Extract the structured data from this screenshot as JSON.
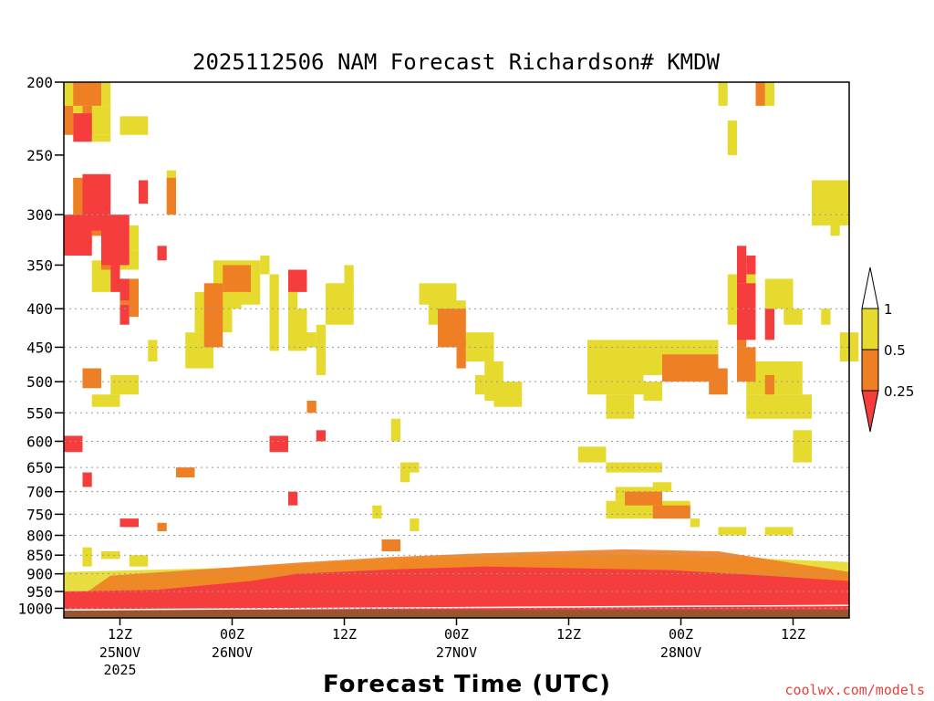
{
  "chart_data": {
    "type": "heatmap",
    "title": "2025112506 NAM Forecast Richardson# KMDW",
    "xlabel": "Forecast Time (UTC)",
    "ylabel": "Pressure (hPa)",
    "credit": "coolwx.com/models",
    "y_axis": {
      "scale": "log",
      "reversed": true,
      "ylim": [
        1030,
        200
      ],
      "ticks": [
        200,
        250,
        300,
        350,
        400,
        450,
        500,
        550,
        600,
        650,
        700,
        750,
        800,
        850,
        900,
        950,
        1000
      ]
    },
    "x_axis": {
      "unit": "forecast hour",
      "xlim": [
        0,
        84
      ],
      "ticks": [
        {
          "hour": 6,
          "label": "12Z",
          "sub": "25NOV",
          "sub2": "2025"
        },
        {
          "hour": 18,
          "label": "00Z",
          "sub": "26NOV",
          "sub2": ""
        },
        {
          "hour": 30,
          "label": "12Z",
          "sub": "",
          "sub2": ""
        },
        {
          "hour": 42,
          "label": "00Z",
          "sub": "27NOV",
          "sub2": ""
        },
        {
          "hour": 54,
          "label": "12Z",
          "sub": "",
          "sub2": ""
        },
        {
          "hour": 66,
          "label": "00Z",
          "sub": "28NOV",
          "sub2": ""
        },
        {
          "hour": 78,
          "label": "12Z",
          "sub": "",
          "sub2": ""
        }
      ]
    },
    "legend": {
      "position": "right",
      "levels": [
        {
          "range": "> 1",
          "color": "#ffffff"
        },
        {
          "range": "0.5 - 1",
          "color": "#e6da2e"
        },
        {
          "range": "0.25 - 0.5",
          "color": "#ee7f24"
        },
        {
          "range": "< 0.25",
          "color": "#f63d3d"
        }
      ],
      "labels": [
        "1",
        "0.5",
        "0.25"
      ]
    },
    "underground": {
      "color": "#9a5430",
      "pressure_top": 1005
    },
    "series": [
      {
        "name": "0.5-1",
        "color": "#e6da2e",
        "cells": [
          [
            0,
            2,
            200,
            215
          ],
          [
            4,
            5,
            200,
            215
          ],
          [
            1,
            5,
            215,
            235
          ],
          [
            6,
            9,
            222,
            235
          ],
          [
            3,
            5,
            235,
            240
          ],
          [
            1,
            4,
            268,
            310
          ],
          [
            11,
            12,
            262,
            300
          ],
          [
            7,
            8,
            310,
            335
          ],
          [
            5,
            8,
            335,
            355
          ],
          [
            3,
            5,
            345,
            380
          ],
          [
            16,
            21,
            345,
            395
          ],
          [
            14,
            18,
            380,
            430
          ],
          [
            13,
            16,
            430,
            480
          ],
          [
            18,
            19,
            350,
            400
          ],
          [
            21,
            22,
            340,
            360
          ],
          [
            22,
            23,
            360,
            455
          ],
          [
            24,
            25,
            360,
            400
          ],
          [
            24,
            26,
            400,
            455
          ],
          [
            28,
            31,
            370,
            420
          ],
          [
            27,
            28,
            420,
            490
          ],
          [
            30,
            31,
            350,
            380
          ],
          [
            9,
            10,
            440,
            470
          ],
          [
            5,
            8,
            490,
            520
          ],
          [
            38,
            42,
            370,
            395
          ],
          [
            39,
            43,
            390,
            420
          ],
          [
            42,
            43,
            420,
            450
          ],
          [
            43,
            46,
            430,
            470
          ],
          [
            44,
            45,
            490,
            520
          ],
          [
            45,
            47,
            470,
            530
          ],
          [
            46,
            49,
            500,
            540
          ],
          [
            56,
            62,
            440,
            520
          ],
          [
            58,
            61,
            520,
            560
          ],
          [
            62,
            70,
            440,
            490
          ],
          [
            62,
            64,
            500,
            530
          ],
          [
            73,
            79,
            470,
            520
          ],
          [
            73,
            80,
            520,
            560
          ],
          [
            78,
            80,
            580,
            640
          ],
          [
            71,
            74,
            360,
            420
          ],
          [
            75,
            78,
            365,
            400
          ],
          [
            77,
            79,
            400,
            420
          ],
          [
            81,
            82,
            400,
            420
          ],
          [
            83,
            85,
            430,
            470
          ],
          [
            80,
            84,
            270,
            310
          ],
          [
            82,
            83,
            300,
            320
          ],
          [
            71,
            72,
            225,
            250
          ],
          [
            70,
            71,
            200,
            215
          ],
          [
            75,
            76,
            200,
            215
          ],
          [
            55,
            58,
            610,
            640
          ],
          [
            58,
            64,
            640,
            660
          ],
          [
            59,
            64,
            690,
            720
          ],
          [
            58,
            67,
            720,
            760
          ],
          [
            63,
            65,
            680,
            700
          ],
          [
            67,
            68,
            760,
            780
          ],
          [
            70,
            73,
            780,
            800
          ],
          [
            75,
            78,
            780,
            800
          ],
          [
            3,
            6,
            520,
            540
          ],
          [
            26,
            27,
            430,
            450
          ],
          [
            36,
            38,
            640,
            660
          ],
          [
            35,
            36,
            560,
            600
          ],
          [
            36,
            37,
            650,
            680
          ],
          [
            37,
            38,
            760,
            790
          ],
          [
            33,
            34,
            730,
            760
          ],
          [
            2,
            3,
            830,
            880
          ],
          [
            4,
            6,
            840,
            860
          ],
          [
            7,
            9,
            850,
            880
          ]
        ]
      },
      {
        "name": "0.25-0.5",
        "color": "#ee7f24",
        "cells": [
          [
            1,
            4,
            200,
            215
          ],
          [
            0,
            1,
            215,
            235
          ],
          [
            2,
            3,
            215,
            235
          ],
          [
            1,
            2,
            268,
            300
          ],
          [
            2,
            3,
            300,
            330
          ],
          [
            3,
            4,
            280,
            320
          ],
          [
            4,
            5,
            325,
            355
          ],
          [
            6,
            8,
            365,
            395
          ],
          [
            11,
            12,
            268,
            300
          ],
          [
            17,
            20,
            350,
            380
          ],
          [
            15,
            17,
            370,
            450
          ],
          [
            7,
            8,
            380,
            410
          ],
          [
            2,
            4,
            480,
            510
          ],
          [
            40,
            43,
            400,
            450
          ],
          [
            42,
            43,
            440,
            480
          ],
          [
            64,
            70,
            460,
            500
          ],
          [
            69,
            71,
            480,
            520
          ],
          [
            72,
            73,
            410,
            450
          ],
          [
            72,
            74,
            450,
            500
          ],
          [
            75,
            76,
            490,
            520
          ],
          [
            74,
            75,
            200,
            215
          ],
          [
            60,
            64,
            700,
            730
          ],
          [
            63,
            67,
            730,
            760
          ],
          [
            12,
            14,
            650,
            670
          ],
          [
            34,
            36,
            810,
            840
          ],
          [
            26,
            27,
            530,
            550
          ],
          [
            10,
            11,
            770,
            790
          ]
        ]
      },
      {
        "name": "<0.25",
        "color": "#f63d3d",
        "cells": [
          [
            2,
            5,
            265,
            315
          ],
          [
            0,
            3,
            300,
            340
          ],
          [
            5,
            6,
            345,
            380
          ],
          [
            4,
            7,
            300,
            350
          ],
          [
            8,
            9,
            270,
            290
          ],
          [
            10,
            11,
            330,
            345
          ],
          [
            1,
            3,
            220,
            240
          ],
          [
            24,
            26,
            355,
            380
          ],
          [
            27,
            28,
            580,
            600
          ],
          [
            22,
            24,
            590,
            620
          ],
          [
            72,
            73,
            330,
            370
          ],
          [
            72,
            74,
            370,
            440
          ],
          [
            73,
            74,
            340,
            360
          ],
          [
            75,
            76,
            400,
            440
          ],
          [
            6,
            7,
            365,
            390
          ],
          [
            6,
            7,
            395,
            420
          ],
          [
            0,
            2,
            590,
            620
          ],
          [
            2,
            3,
            660,
            690
          ],
          [
            36,
            38,
            860,
            900
          ],
          [
            24,
            25,
            700,
            730
          ],
          [
            6,
            8,
            760,
            780
          ]
        ]
      },
      {
        "name": "near-surface <0.25",
        "color": "#f63d3d",
        "base": [
          [
            0,
            950
          ],
          [
            10,
            945
          ],
          [
            20,
            920
          ],
          [
            25,
            900
          ],
          [
            35,
            888
          ],
          [
            45,
            880
          ],
          [
            55,
            885
          ],
          [
            65,
            890
          ],
          [
            75,
            905
          ],
          [
            84,
            920
          ]
        ],
        "fringe_yellow": [
          [
            0,
            895
          ],
          [
            20,
            882
          ],
          [
            35,
            860
          ],
          [
            50,
            852
          ],
          [
            65,
            850
          ],
          [
            84,
            868
          ]
        ],
        "fringe_orange": [
          [
            5,
            905
          ],
          [
            25,
            870
          ],
          [
            35,
            855
          ],
          [
            45,
            845
          ],
          [
            60,
            835
          ],
          [
            70,
            840
          ],
          [
            84,
            895
          ]
        ]
      }
    ]
  }
}
